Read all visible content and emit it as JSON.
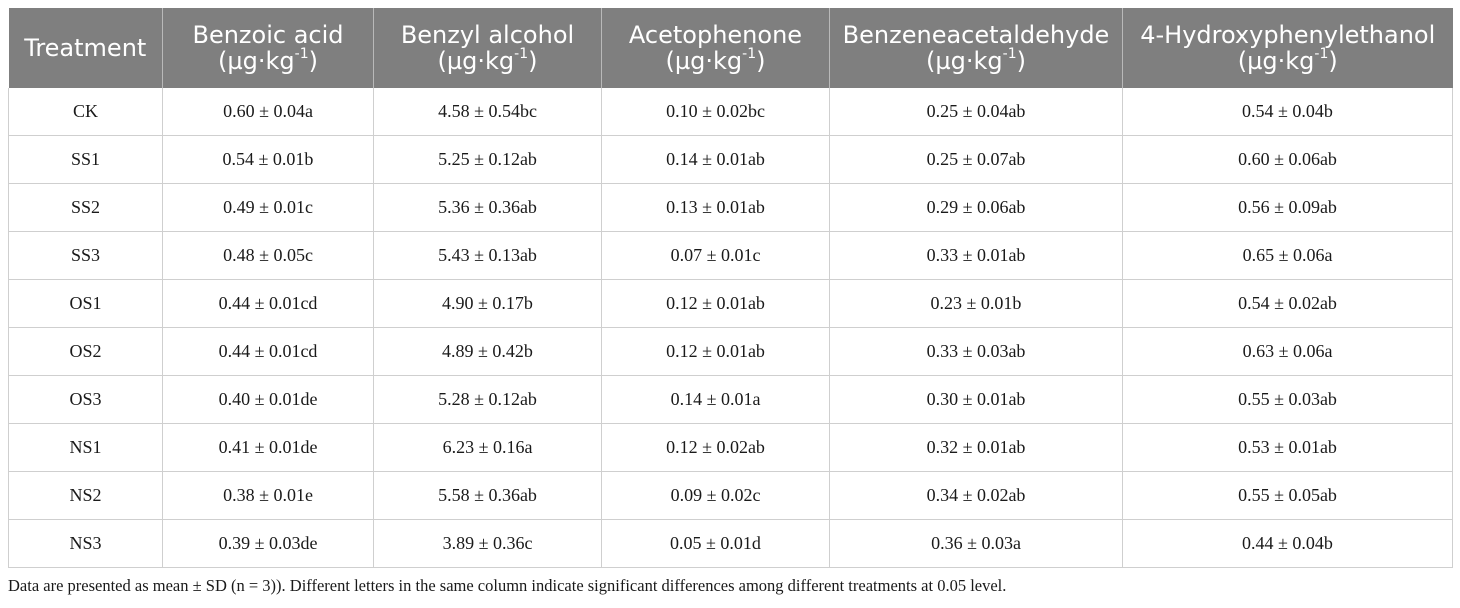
{
  "table": {
    "columns": [
      {
        "name": "Treatment",
        "unit": ""
      },
      {
        "name": "Benzoic acid",
        "unit": "(µg·kg",
        "exp": "-1",
        "close": ")"
      },
      {
        "name": "Benzyl alcohol",
        "unit": "(µg·kg",
        "exp": "-1",
        "close": ")"
      },
      {
        "name": "Acetophenone",
        "unit": "(µg·kg",
        "exp": "-1",
        "close": ")"
      },
      {
        "name": "Benzeneacetaldehyde",
        "unit": "(µg·kg",
        "exp": "-1",
        "close": ")"
      },
      {
        "name": "4-Hydroxyphenylethanol",
        "unit": "(µg·kg",
        "exp": "-1",
        "close": ")"
      }
    ],
    "rows": [
      [
        "CK",
        "0.60 ± 0.04a",
        "4.58 ± 0.54bc",
        "0.10 ± 0.02bc",
        "0.25 ± 0.04ab",
        "0.54 ± 0.04b"
      ],
      [
        "SS1",
        "0.54 ± 0.01b",
        "5.25 ± 0.12ab",
        "0.14 ± 0.01ab",
        "0.25 ± 0.07ab",
        "0.60 ± 0.06ab"
      ],
      [
        "SS2",
        "0.49 ± 0.01c",
        "5.36 ± 0.36ab",
        "0.13 ± 0.01ab",
        "0.29 ± 0.06ab",
        "0.56 ± 0.09ab"
      ],
      [
        "SS3",
        "0.48 ± 0.05c",
        "5.43 ± 0.13ab",
        "0.07 ± 0.01c",
        "0.33 ± 0.01ab",
        "0.65 ± 0.06a"
      ],
      [
        "OS1",
        "0.44 ± 0.01cd",
        "4.90 ± 0.17b",
        "0.12 ± 0.01ab",
        "0.23 ± 0.01b",
        "0.54 ± 0.02ab"
      ],
      [
        "OS2",
        "0.44 ± 0.01cd",
        "4.89 ± 0.42b",
        "0.12 ± 0.01ab",
        "0.33 ± 0.03ab",
        "0.63 ± 0.06a"
      ],
      [
        "OS3",
        "0.40 ± 0.01de",
        "5.28 ± 0.12ab",
        "0.14 ± 0.01a",
        "0.30 ± 0.01ab",
        "0.55 ± 0.03ab"
      ],
      [
        "NS1",
        "0.41 ± 0.01de",
        "6.23 ± 0.16a",
        "0.12 ± 0.02ab",
        "0.32 ± 0.01ab",
        "0.53 ± 0.01ab"
      ],
      [
        "NS2",
        "0.38 ± 0.01e",
        "5.58 ± 0.36ab",
        "0.09 ± 0.02c",
        "0.34 ± 0.02ab",
        "0.55 ± 0.05ab"
      ],
      [
        "NS3",
        "0.39 ± 0.03de",
        "3.89 ± 0.36c",
        "0.05 ± 0.01d",
        "0.36 ± 0.03a",
        "0.44 ± 0.04b"
      ]
    ]
  },
  "footnote": "Data are presented as mean ± SD (n = 3)). Different letters in the same column indicate significant differences among different treatments at 0.05 level.",
  "colors": {
    "header_bg": "#7f7f7f",
    "header_text": "#ffffff",
    "grid": "#cfcfcf"
  }
}
